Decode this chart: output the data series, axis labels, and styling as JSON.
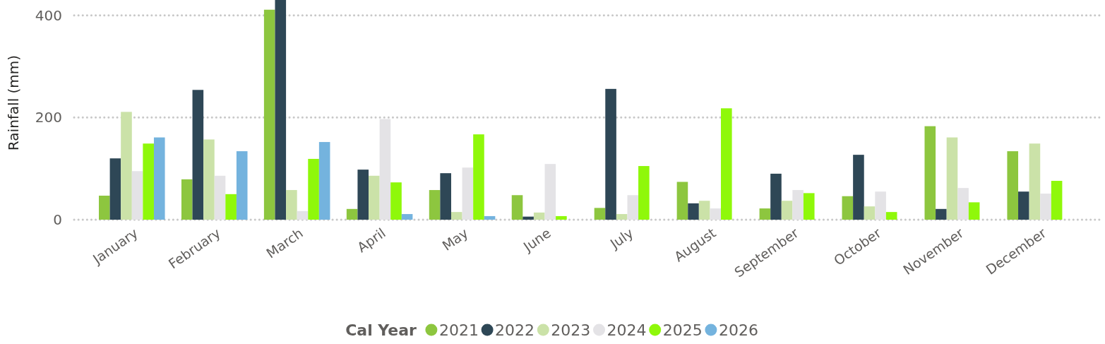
{
  "chart_data": {
    "type": "bar",
    "ylabel": "Rainfall (mm)",
    "legend_title": "Cal Year",
    "legend": "bottom",
    "grid": "y",
    "line_style": "dotted",
    "categories": [
      "January",
      "February",
      "March",
      "April",
      "May",
      "June",
      "July",
      "August",
      "September",
      "October",
      "November",
      "December"
    ],
    "ylim": [
      0,
      430
    ],
    "yticks": [
      0,
      200,
      400
    ],
    "series": [
      {
        "name": "2021",
        "color": "#8dc63f",
        "values": [
          47,
          79,
          411,
          21,
          58,
          48,
          23,
          74,
          22,
          46,
          183,
          134
        ]
      },
      {
        "name": "2022",
        "color": "#2e4756",
        "values": [
          120,
          254,
          430,
          98,
          91,
          6,
          256,
          32,
          90,
          127,
          21,
          55
        ]
      },
      {
        "name": "2023",
        "color": "#cbe2a8",
        "values": [
          211,
          157,
          58,
          86,
          15,
          14,
          11,
          37,
          37,
          26,
          161,
          149
        ]
      },
      {
        "name": "2024",
        "color": "#e4e3e6",
        "values": [
          95,
          86,
          17,
          197,
          102,
          109,
          48,
          22,
          58,
          55,
          62,
          51
        ]
      },
      {
        "name": "2025",
        "color": "#8ff80a",
        "values": [
          149,
          50,
          119,
          73,
          167,
          7,
          105,
          218,
          52,
          15,
          34,
          76
        ]
      },
      {
        "name": "2026",
        "color": "#74b3de",
        "values": [
          161,
          134,
          152,
          11,
          7,
          null,
          null,
          null,
          null,
          null,
          null,
          null
        ]
      }
    ]
  }
}
